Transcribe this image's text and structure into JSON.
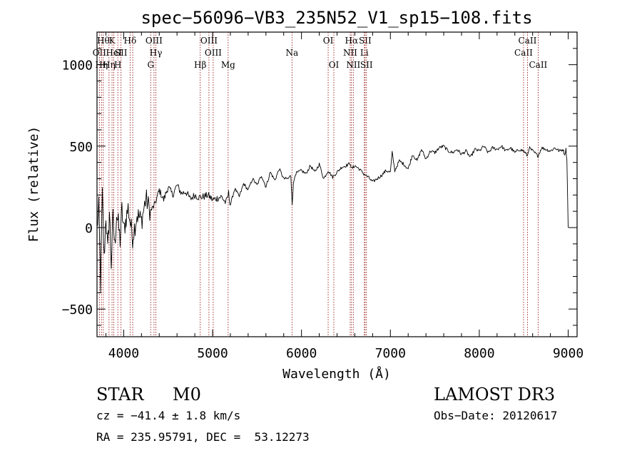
{
  "chart_data": {
    "type": "line",
    "title": "spec−56096−VB3_235N52_V1_sp15−108.fits",
    "xlabel": "Wavelength (Å)",
    "ylabel": "Flux (relative)",
    "xlim": [
      3700,
      9100
    ],
    "ylim": [
      -670,
      1200
    ],
    "x_ticks": [
      4000,
      5000,
      6000,
      7000,
      8000,
      9000
    ],
    "x_tick_labels": [
      "4000",
      "5000",
      "6000",
      "7000",
      "8000",
      "9000"
    ],
    "y_ticks": [
      -500,
      0,
      500,
      1000
    ],
    "y_tick_labels": [
      "−500",
      "0",
      "500",
      "1000"
    ],
    "line_color": "#000000",
    "marker_color": "#8b0000",
    "series": [
      {
        "name": "flux",
        "x": [
          3700,
          3720,
          3740,
          3760,
          3780,
          3800,
          3820,
          3840,
          3860,
          3880,
          3900,
          3920,
          3940,
          3960,
          3980,
          4000,
          4050,
          4100,
          4150,
          4200,
          4250,
          4300,
          4350,
          4400,
          4450,
          4500,
          4550,
          4600,
          4650,
          4700,
          4750,
          4800,
          4850,
          4900,
          4950,
          5000,
          5050,
          5100,
          5150,
          5180,
          5200,
          5250,
          5300,
          5350,
          5400,
          5450,
          5500,
          5550,
          5600,
          5650,
          5700,
          5750,
          5800,
          5850,
          5880,
          5895,
          5910,
          5930,
          6000,
          6050,
          6100,
          6150,
          6200,
          6250,
          6300,
          6350,
          6400,
          6450,
          6500,
          6550,
          6563,
          6600,
          6650,
          6700,
          6750,
          6800,
          6850,
          6900,
          6950,
          7000,
          7020,
          7050,
          7100,
          7150,
          7200,
          7250,
          7300,
          7350,
          7400,
          7450,
          7500,
          7550,
          7600,
          7650,
          7700,
          7750,
          7800,
          7850,
          7900,
          7950,
          8000,
          8050,
          8100,
          8150,
          8200,
          8250,
          8300,
          8350,
          8400,
          8450,
          8500,
          8542,
          8560,
          8600,
          8662,
          8700,
          8750,
          8800,
          8850,
          8900,
          8940,
          8960,
          8975,
          8985,
          9000
        ],
        "y": [
          0,
          120,
          -350,
          200,
          -200,
          80,
          -150,
          100,
          -220,
          60,
          -120,
          90,
          20,
          -80,
          110,
          -20,
          120,
          -60,
          80,
          40,
          180,
          100,
          140,
          230,
          170,
          250,
          200,
          260,
          210,
          220,
          175,
          200,
          185,
          190,
          200,
          170,
          180,
          190,
          150,
          210,
          140,
          240,
          190,
          270,
          230,
          300,
          260,
          320,
          250,
          340,
          290,
          360,
          300,
          300,
          320,
          150,
          270,
          330,
          350,
          330,
          380,
          340,
          390,
          300,
          350,
          310,
          340,
          370,
          380,
          395,
          360,
          380,
          360,
          330,
          310,
          280,
          300,
          320,
          350,
          340,
          460,
          350,
          410,
          390,
          360,
          450,
          410,
          480,
          420,
          470,
          460,
          490,
          500,
          470,
          460,
          480,
          450,
          470,
          430,
          480,
          470,
          500,
          460,
          490,
          480,
          500,
          470,
          490,
          460,
          480,
          470,
          440,
          490,
          470,
          440,
          490,
          480,
          470,
          490,
          470,
          480,
          450,
          480,
          420,
          0
        ]
      }
    ],
    "line_markers": [
      {
        "wl": 3727,
        "label": "OII",
        "row": 1
      },
      {
        "wl": 3750,
        "label": "Hη",
        "row": 2
      },
      {
        "wl": 3771,
        "label": "Hθ",
        "row": 0
      },
      {
        "wl": 3835,
        "label": "Hη",
        "row": 2
      },
      {
        "wl": 3869,
        "label": "K",
        "row": 0
      },
      {
        "wl": 3889,
        "label": "HeI",
        "row": 1
      },
      {
        "wl": 3934,
        "label": "H",
        "row": 2
      },
      {
        "wl": 3970,
        "label": "SII",
        "row": 1
      },
      {
        "wl": 4072,
        "label": "Hδ",
        "row": 0
      },
      {
        "wl": 4102,
        "label": "",
        "row": 0
      },
      {
        "wl": 4304,
        "label": "G",
        "row": 2
      },
      {
        "wl": 4341,
        "label": "OIII",
        "row": 0
      },
      {
        "wl": 4363,
        "label": "Hγ",
        "row": 1
      },
      {
        "wl": 4861,
        "label": "Hβ",
        "row": 2
      },
      {
        "wl": 4959,
        "label": "OIII",
        "row": 0
      },
      {
        "wl": 5007,
        "label": "OIII",
        "row": 1
      },
      {
        "wl": 5175,
        "label": "Mg",
        "row": 2
      },
      {
        "wl": 5893,
        "label": "Na",
        "row": 1
      },
      {
        "wl": 6300,
        "label": "OI",
        "row": 0
      },
      {
        "wl": 6364,
        "label": "OI",
        "row": 2
      },
      {
        "wl": 6548,
        "label": "NII",
        "row": 1
      },
      {
        "wl": 6563,
        "label": "Hα",
        "row": 0
      },
      {
        "wl": 6583,
        "label": "NII",
        "row": 2
      },
      {
        "wl": 6707,
        "label": "Li",
        "row": 1
      },
      {
        "wl": 6716,
        "label": "SII",
        "row": 0
      },
      {
        "wl": 6731,
        "label": "SII",
        "row": 2
      },
      {
        "wl": 8498,
        "label": "CaII",
        "row": 1
      },
      {
        "wl": 8542,
        "label": "CaII",
        "row": 0
      },
      {
        "wl": 8662,
        "label": "CaII",
        "row": 2
      }
    ]
  },
  "info": {
    "object_type": "STAR",
    "subclass": "M0",
    "survey": "LAMOST DR3",
    "cz_line": "cz = −41.4 ± 1.8 km/s",
    "obs_date_line": "Obs−Date: 20120617",
    "coords_line": "RA = 235.95791, DEC =  53.12273"
  }
}
